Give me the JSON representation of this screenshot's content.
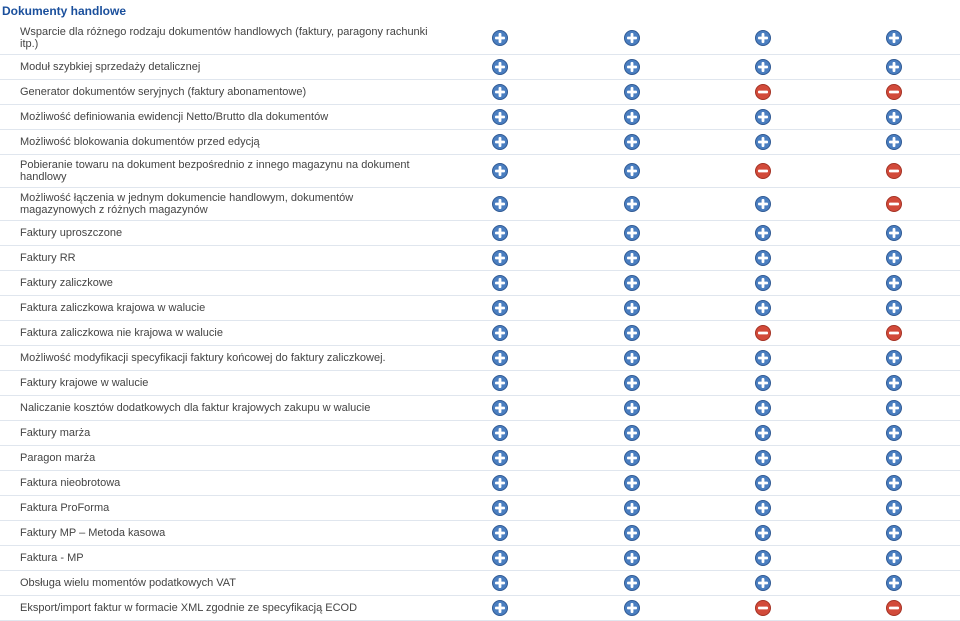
{
  "colors": {
    "plus_fill": "#4a7ec0",
    "plus_stroke": "#305a94",
    "minus_fill": "#d24a3a",
    "minus_stroke": "#a43224",
    "symbol": "#ffffff",
    "header_text": "#1a4f9c",
    "row_border": "#e0e6ee"
  },
  "icon_size": 16,
  "section_title": "Dokumenty handlowe",
  "rows": [
    {
      "label": "Wsparcie dla różnego rodzaju dokumentów handlowych (faktury, paragony rachunki itp.)",
      "cols": [
        "plus",
        "plus",
        "plus",
        "plus"
      ]
    },
    {
      "label": "Moduł szybkiej sprzedaży detalicznej",
      "cols": [
        "plus",
        "plus",
        "plus",
        "plus"
      ]
    },
    {
      "label": "Generator dokumentów seryjnych (faktury abonamentowe)",
      "cols": [
        "plus",
        "plus",
        "minus",
        "minus"
      ]
    },
    {
      "label": "Możliwość definiowania ewidencji Netto/Brutto dla dokumentów",
      "cols": [
        "plus",
        "plus",
        "plus",
        "plus"
      ]
    },
    {
      "label": "Możliwość blokowania dokumentów przed edycją",
      "cols": [
        "plus",
        "plus",
        "plus",
        "plus"
      ]
    },
    {
      "label": "Pobieranie towaru na dokument bezpośrednio z innego magazynu na dokument handlowy",
      "cols": [
        "plus",
        "plus",
        "minus",
        "minus"
      ]
    },
    {
      "label": "Możliwość łączenia w jednym dokumencie handlowym, dokumentów magazynowych z różnych magazynów",
      "cols": [
        "plus",
        "plus",
        "plus",
        "minus"
      ]
    },
    {
      "label": "Faktury uproszczone",
      "cols": [
        "plus",
        "plus",
        "plus",
        "plus"
      ]
    },
    {
      "label": "Faktury RR",
      "cols": [
        "plus",
        "plus",
        "plus",
        "plus"
      ]
    },
    {
      "label": "Faktury zaliczkowe",
      "cols": [
        "plus",
        "plus",
        "plus",
        "plus"
      ]
    },
    {
      "label": "Faktura zaliczkowa krajowa w walucie",
      "cols": [
        "plus",
        "plus",
        "plus",
        "plus"
      ]
    },
    {
      "label": "Faktura zaliczkowa nie krajowa w walucie",
      "cols": [
        "plus",
        "plus",
        "minus",
        "minus"
      ]
    },
    {
      "label": "Możliwość modyfikacji specyfikacji faktury końcowej do faktury zaliczkowej.",
      "cols": [
        "plus",
        "plus",
        "plus",
        "plus"
      ]
    },
    {
      "label": "Faktury krajowe w walucie",
      "cols": [
        "plus",
        "plus",
        "plus",
        "plus"
      ]
    },
    {
      "label": "Naliczanie kosztów dodatkowych dla faktur krajowych zakupu w walucie",
      "cols": [
        "plus",
        "plus",
        "plus",
        "plus"
      ]
    },
    {
      "label": "Faktury marża",
      "cols": [
        "plus",
        "plus",
        "plus",
        "plus"
      ]
    },
    {
      "label": "Paragon marża",
      "cols": [
        "plus",
        "plus",
        "plus",
        "plus"
      ]
    },
    {
      "label": "Faktura nieobrotowa",
      "cols": [
        "plus",
        "plus",
        "plus",
        "plus"
      ]
    },
    {
      "label": "Faktura ProForma",
      "cols": [
        "plus",
        "plus",
        "plus",
        "plus"
      ]
    },
    {
      "label": "Faktury MP – Metoda kasowa",
      "cols": [
        "plus",
        "plus",
        "plus",
        "plus"
      ]
    },
    {
      "label": "Faktura - MP",
      "cols": [
        "plus",
        "plus",
        "plus",
        "plus"
      ]
    },
    {
      "label": "Obsługa wielu momentów podatkowych VAT",
      "cols": [
        "plus",
        "plus",
        "plus",
        "plus"
      ]
    },
    {
      "label": "Eksport/import faktur w formacie XML zgodnie ze specyfikacją ECOD",
      "cols": [
        "plus",
        "plus",
        "minus",
        "minus"
      ]
    }
  ]
}
